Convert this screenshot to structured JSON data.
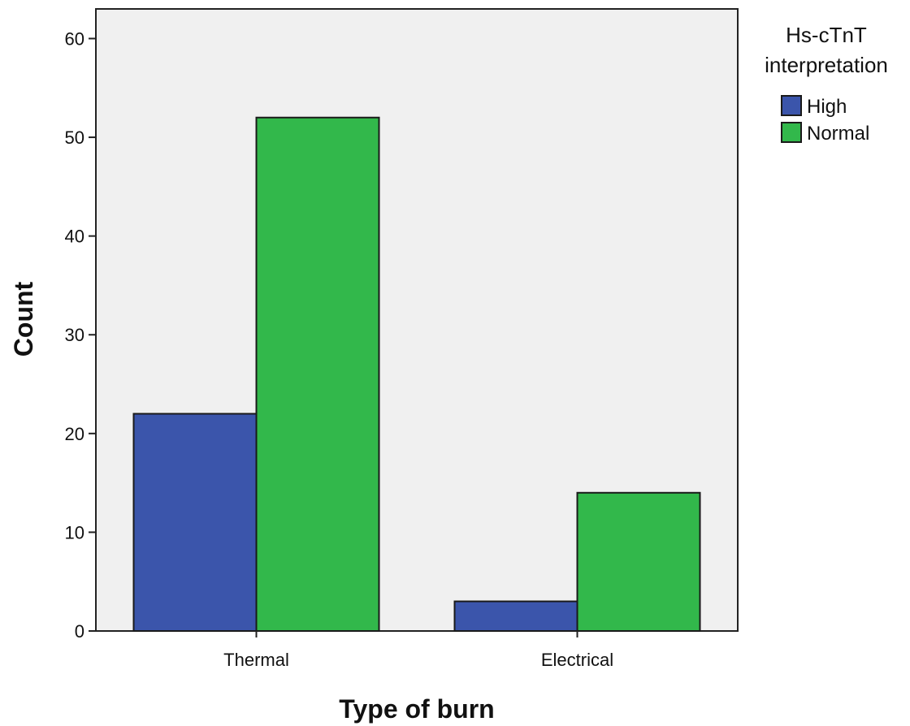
{
  "chart_data": {
    "type": "bar",
    "xlabel": "Type of burn",
    "ylabel": "Count",
    "categories": [
      "Thermal",
      "Electrical"
    ],
    "series": [
      {
        "name": "High",
        "values": [
          22,
          3
        ],
        "color": "#3b55ab"
      },
      {
        "name": "Normal",
        "values": [
          52,
          14
        ],
        "color": "#32b84b"
      }
    ],
    "ylim": [
      0,
      63
    ],
    "yticks": [
      0,
      10,
      20,
      30,
      40,
      50,
      60
    ],
    "legend": {
      "title_lines": [
        "Hs-cTnT",
        "interpretation"
      ],
      "placement": "right-top"
    },
    "plot_background": "#f0f0f0",
    "grid": false
  }
}
